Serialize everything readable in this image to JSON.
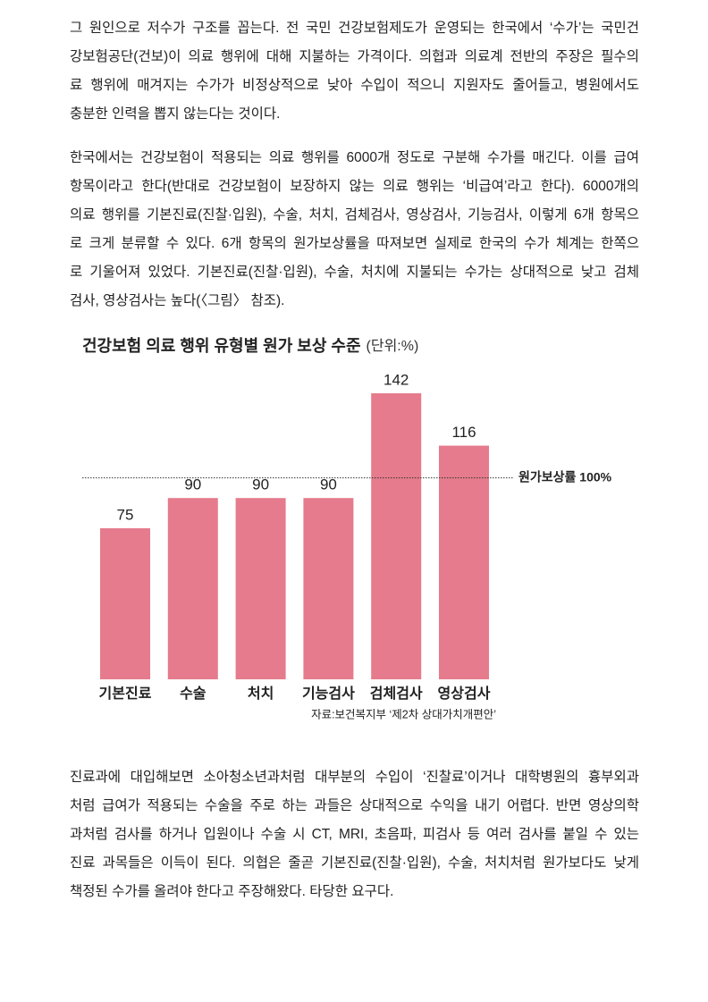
{
  "paragraphs": [
    {
      "lines": [
        "그 원인으로 저수가 구조를 꼽는다. 전 국민 건강보험제도가 운영되는 한국에서 ‘수가’는 국민건",
        "강보험공단(건보)이 의료 행위에 대해 지불하는 가격이다. 의협과 의료계 전반의 주장은 필수의",
        "료 행위에 매겨지는 수가가 비정상적으로 낮아 수입이 적으니 지원자도 줄어들고, 병원에서도",
        "충분한 인력을 뽑지 않는다는 것이다."
      ]
    },
    {
      "lines": [
        "한국에서는 건강보험이 적용되는 의료 행위를 6000개 정도로 구분해 수가를 매긴다. 이를 급여",
        "항목이라고 한다(반대로 건강보험이 보장하지 않는 의료 행위는 ‘비급여’라고 한다). 6000개의",
        "의료 행위를 기본진료(진찰·입원), 수술, 처치, 검체검사, 영상검사, 기능검사, 이렇게 6개 항목으",
        "로 크게 분류할 수 있다. 6개 항목의 원가보상률을 따져보면 실제로 한국의 수가 체계는 한쪽으",
        "로 기울어져 있었다. 기본진료(진찰·입원), 수술, 처치에 지불되는 수가는 상대적으로 낮고 검체",
        "검사, 영상검사는 높다(〈그림〉 참조)."
      ]
    },
    {
      "lines": [
        "진료과에 대입해보면 소아청소년과처럼 대부분의 수입이 ‘진찰료’이거나 대학병원의 흉부외과",
        "처럼 급여가 적용되는 수술을 주로 하는 과들은 상대적으로 수익을 내기 어렵다. 반면 영상의학",
        "과처럼 검사를 하거나 입원이나 수술 시 CT, MRI, 초음파, 피검사 등 여러 검사를 붙일 수 있는",
        "진료 과목들은 이득이 된다. 의협은 줄곧 기본진료(진찰·입원), 수술, 처치처럼 원가보다도 낮게",
        "책정된 수가를 올려야 한다고 주장해왔다. 타당한 요구다."
      ]
    }
  ],
  "chart_data": {
    "type": "bar",
    "title": "건강보험 의료 행위 유형별 원가 보상 수준",
    "unit_note": "(단위:%)",
    "categories": [
      "기본진료",
      "수술",
      "처치",
      "기능검사",
      "검체검사",
      "영상검사"
    ],
    "values": [
      75,
      90,
      90,
      90,
      142,
      116
    ],
    "color": "#e57b8c",
    "reference_line": {
      "value": 100,
      "label": "원가보상률 100%"
    },
    "source": "자료:보건복지부 ‘제2차 상대가치개편안’"
  }
}
